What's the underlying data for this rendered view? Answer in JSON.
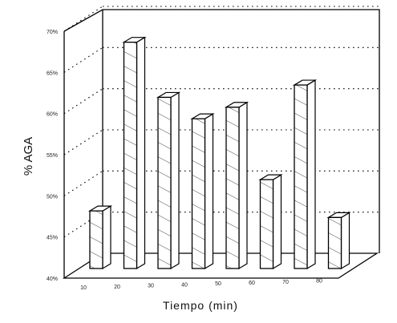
{
  "chart_data": {
    "type": "bar",
    "categories": [
      "10",
      "20",
      "30",
      "40",
      "50",
      "60",
      "70",
      "80"
    ],
    "values": [
      47.0,
      67.5,
      60.8,
      58.2,
      59.6,
      50.8,
      62.3,
      46.2
    ],
    "xlabel": "Tiempo (min)",
    "ylabel": "% AGA",
    "yticks": [
      "40%",
      "45%",
      "50%",
      "55%",
      "60%",
      "65%",
      "70%"
    ],
    "ylim": [
      40,
      70
    ],
    "grid": "dotted horizontal lines on back wall",
    "style": "3D hatched bars, black and white"
  }
}
